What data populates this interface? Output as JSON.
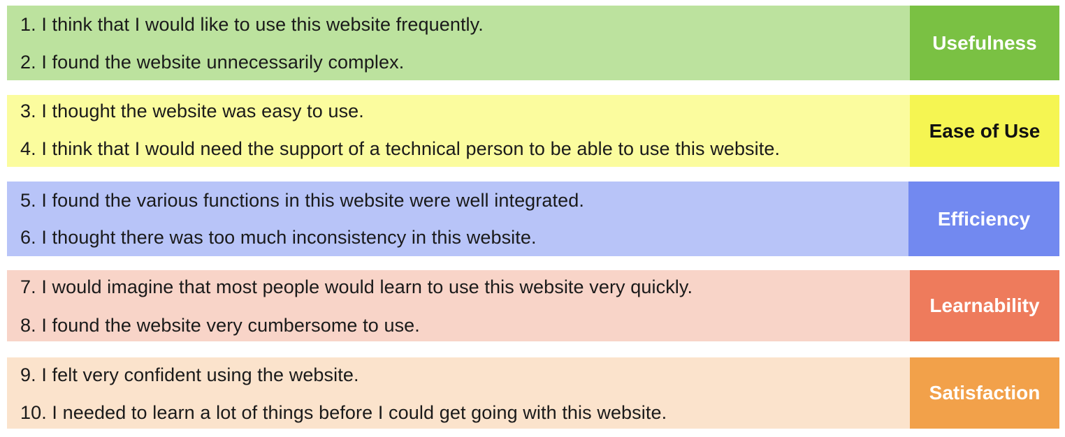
{
  "groups": [
    {
      "category": "Usefulness",
      "items": [
        "1. I think that I would like to use this website frequently.",
        "2. I found the website unnecessarily complex."
      ],
      "colors": {
        "light": "#bce29e",
        "dark": "#7ac143",
        "label": "#ffffff"
      }
    },
    {
      "category": "Ease of Use",
      "items": [
        "3. I thought the website was easy to use.",
        "4. I think that I would need the support of a technical person to be able to use this website."
      ],
      "colors": {
        "light": "#fbfc9e",
        "dark": "#f5f552",
        "label": "#111111"
      }
    },
    {
      "category": "Efficiency",
      "items": [
        "5. I found the various functions in this website were well integrated.",
        "6. I thought there was too much inconsistency in this website."
      ],
      "colors": {
        "light": "#b8c4f8",
        "dark": "#7289f0",
        "label": "#ffffff"
      }
    },
    {
      "category": "Learnability",
      "items": [
        "7. I would imagine that most people would learn to use this website very quickly.",
        "8. I found the website very cumbersome to use."
      ],
      "colors": {
        "light": "#f8d4c8",
        "dark": "#ee7b5c",
        "label": "#ffffff"
      }
    },
    {
      "category": "Satisfaction",
      "items": [
        "9. I felt very confident using the website.",
        "10. I needed to learn a lot of things before I could get going with this website."
      ],
      "colors": {
        "light": "#fbe3cc",
        "dark": "#f2a14a",
        "label": "#ffffff"
      }
    }
  ]
}
